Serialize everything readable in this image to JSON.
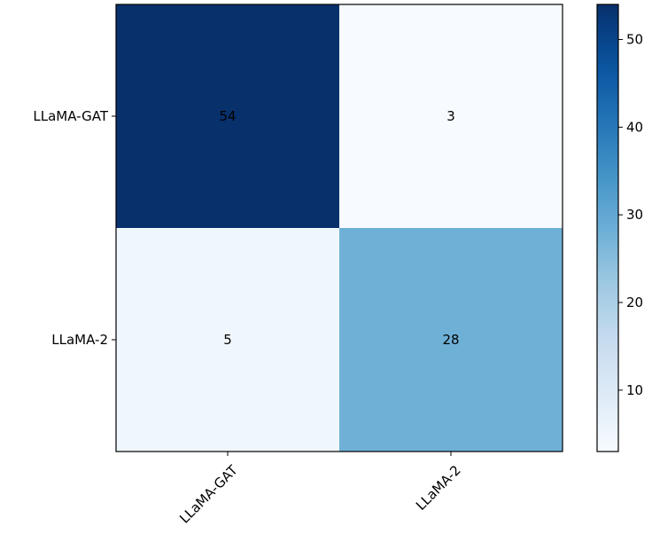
{
  "chart_data": {
    "type": "heatmap",
    "x_categories": [
      "LLaMA-GAT",
      "LLaMA-2"
    ],
    "y_categories": [
      "LLaMA-GAT",
      "LLaMA-2"
    ],
    "values": [
      [
        54,
        3
      ],
      [
        5,
        28
      ]
    ],
    "cell_labels": [
      [
        "54",
        "3"
      ],
      [
        "5",
        "28"
      ]
    ],
    "colormap": "Blues",
    "colorbar": {
      "range": [
        3,
        54
      ],
      "ticks": [
        10,
        20,
        30,
        40,
        50
      ],
      "tick_labels": [
        "10",
        "20",
        "30",
        "40",
        "50"
      ]
    },
    "title": "",
    "xlabel": "",
    "ylabel": "",
    "grid": false
  }
}
